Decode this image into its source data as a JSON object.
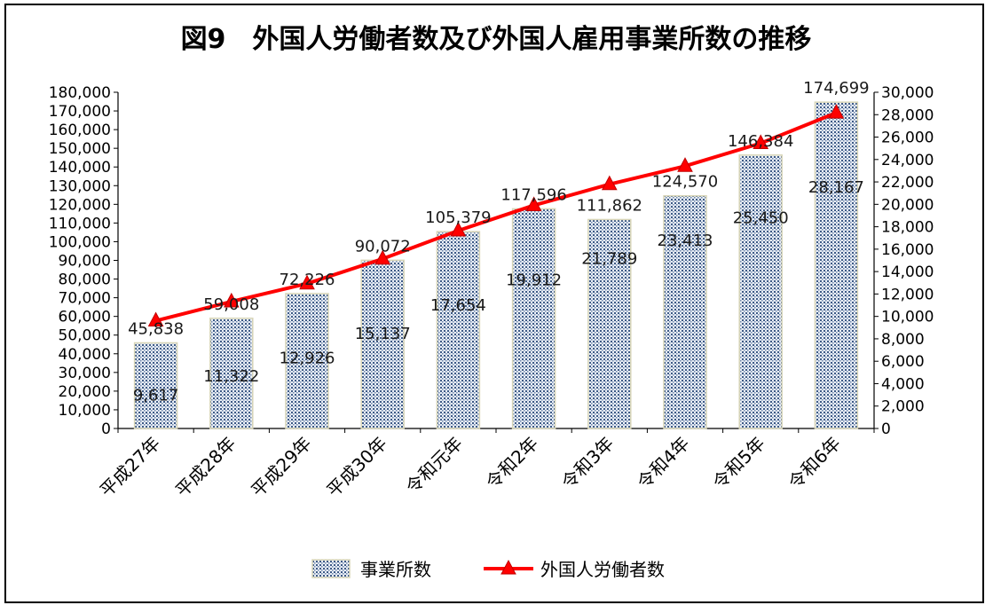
{
  "chart_data": {
    "type": "bar",
    "title": "図9　外国人労働者数及び外国人雇用事業所数の推移",
    "categories": [
      "平成27年",
      "平成28年",
      "平成29年",
      "平成30年",
      "令和元年",
      "令和2年",
      "令和3年",
      "令和4年",
      "令和5年",
      "令和6年"
    ],
    "series": [
      {
        "name": "事業所数",
        "type": "bar",
        "axis": "left",
        "values": [
          45838,
          59008,
          72226,
          90072,
          105379,
          117596,
          111862,
          124570,
          146384,
          174699
        ],
        "labels": [
          "45,838",
          "59,008",
          "72,226",
          "90,072",
          "105,379",
          "117,596",
          "111,862",
          "124,570",
          "146,384",
          "174,699"
        ],
        "color": "#b7c7dc"
      },
      {
        "name": "外国人労働者数",
        "type": "line",
        "axis": "right",
        "values": [
          9617,
          11322,
          12926,
          15137,
          17654,
          19912,
          21789,
          23413,
          25450,
          28167
        ],
        "labels": [
          "9,617",
          "11,322",
          "12,926",
          "15,137",
          "17,654",
          "19,912",
          "21,789",
          "23,413",
          "25,450",
          "28,167"
        ],
        "color": "#ff0000"
      }
    ],
    "y_left": {
      "lim": [
        0,
        180000
      ],
      "ticks": [
        "0",
        "10,000",
        "20,000",
        "30,000",
        "40,000",
        "50,000",
        "60,000",
        "70,000",
        "80,000",
        "90,000",
        "100,000",
        "110,000",
        "120,000",
        "130,000",
        "140,000",
        "150,000",
        "160,000",
        "170,000",
        "180,000"
      ]
    },
    "y_right": {
      "lim": [
        0,
        30000
      ],
      "ticks": [
        "0",
        "2,000",
        "4,000",
        "6,000",
        "8,000",
        "10,000",
        "12,000",
        "14,000",
        "16,000",
        "18,000",
        "20,000",
        "22,000",
        "24,000",
        "26,000",
        "28,000",
        "30,000"
      ]
    },
    "legend_position": "bottom",
    "grid": false
  }
}
